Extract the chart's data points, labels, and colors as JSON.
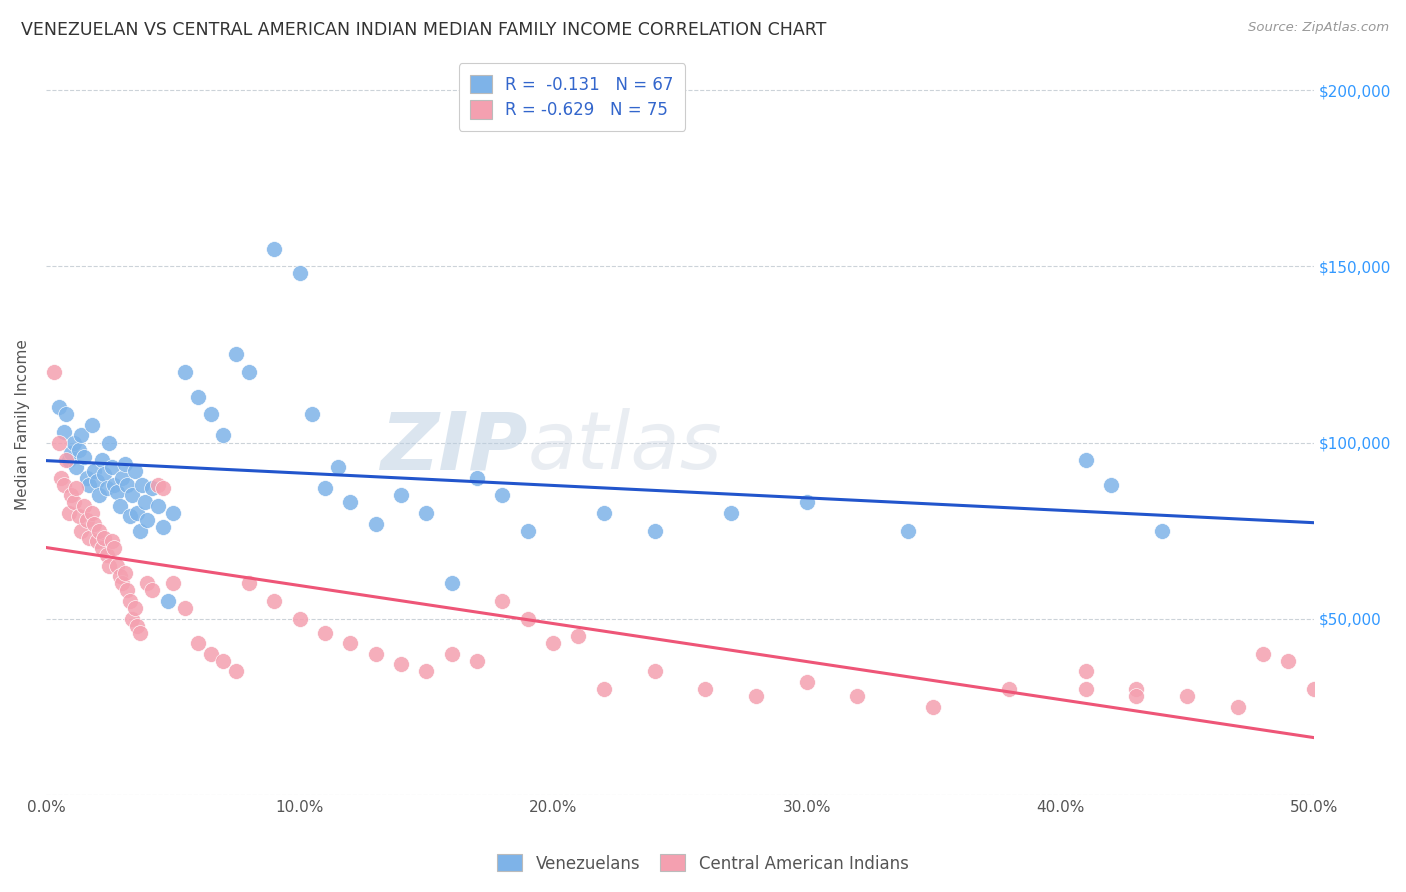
{
  "title": "VENEZUELAN VS CENTRAL AMERICAN INDIAN MEDIAN FAMILY INCOME CORRELATION CHART",
  "source": "Source: ZipAtlas.com",
  "ylabel": "Median Family Income",
  "xlabel_ticks": [
    "0.0%",
    "10.0%",
    "20.0%",
    "30.0%",
    "40.0%",
    "50.0%"
  ],
  "xlabel_tick_vals": [
    0.0,
    0.1,
    0.2,
    0.3,
    0.4,
    0.5
  ],
  "ylabel_ticks": [
    0,
    50000,
    100000,
    150000,
    200000
  ],
  "ylabel_tick_labels": [
    "",
    "$50,000",
    "$100,000",
    "$150,000",
    "$200,000"
  ],
  "xlim": [
    0.0,
    0.5
  ],
  "ylim": [
    0,
    210000
  ],
  "blue_R": "-0.131",
  "blue_N": "67",
  "pink_R": "-0.629",
  "pink_N": "75",
  "blue_color": "#7EB3E8",
  "pink_color": "#F4A0B0",
  "blue_line_color": "#2255CC",
  "pink_line_color": "#EE5577",
  "watermark_zip": "ZIP",
  "watermark_atlas": "atlas",
  "background_color": "#FFFFFF",
  "venezuelans_label": "Venezuelans",
  "central_american_label": "Central American Indians",
  "blue_scatter_x": [
    0.005,
    0.007,
    0.008,
    0.009,
    0.01,
    0.011,
    0.012,
    0.013,
    0.014,
    0.015,
    0.016,
    0.017,
    0.018,
    0.019,
    0.02,
    0.021,
    0.022,
    0.023,
    0.024,
    0.025,
    0.026,
    0.027,
    0.028,
    0.029,
    0.03,
    0.031,
    0.032,
    0.033,
    0.034,
    0.035,
    0.036,
    0.037,
    0.038,
    0.039,
    0.04,
    0.042,
    0.044,
    0.046,
    0.048,
    0.05,
    0.055,
    0.06,
    0.065,
    0.07,
    0.075,
    0.08,
    0.09,
    0.1,
    0.105,
    0.11,
    0.115,
    0.12,
    0.13,
    0.14,
    0.15,
    0.16,
    0.17,
    0.18,
    0.19,
    0.22,
    0.24,
    0.27,
    0.3,
    0.34,
    0.41,
    0.42,
    0.44
  ],
  "blue_scatter_y": [
    110000,
    103000,
    108000,
    95000,
    97000,
    100000,
    93000,
    98000,
    102000,
    96000,
    90000,
    88000,
    105000,
    92000,
    89000,
    85000,
    95000,
    91000,
    87000,
    100000,
    93000,
    88000,
    86000,
    82000,
    90000,
    94000,
    88000,
    79000,
    85000,
    92000,
    80000,
    75000,
    88000,
    83000,
    78000,
    87000,
    82000,
    76000,
    55000,
    80000,
    120000,
    113000,
    108000,
    102000,
    125000,
    120000,
    155000,
    148000,
    108000,
    87000,
    93000,
    83000,
    77000,
    85000,
    80000,
    60000,
    90000,
    85000,
    75000,
    80000,
    75000,
    80000,
    83000,
    75000,
    95000,
    88000,
    75000
  ],
  "pink_scatter_x": [
    0.003,
    0.005,
    0.006,
    0.007,
    0.008,
    0.009,
    0.01,
    0.011,
    0.012,
    0.013,
    0.014,
    0.015,
    0.016,
    0.017,
    0.018,
    0.019,
    0.02,
    0.021,
    0.022,
    0.023,
    0.024,
    0.025,
    0.026,
    0.027,
    0.028,
    0.029,
    0.03,
    0.031,
    0.032,
    0.033,
    0.034,
    0.035,
    0.036,
    0.037,
    0.04,
    0.042,
    0.044,
    0.046,
    0.05,
    0.055,
    0.06,
    0.065,
    0.07,
    0.075,
    0.08,
    0.09,
    0.1,
    0.11,
    0.12,
    0.13,
    0.14,
    0.15,
    0.16,
    0.17,
    0.18,
    0.19,
    0.2,
    0.21,
    0.22,
    0.24,
    0.26,
    0.28,
    0.3,
    0.32,
    0.35,
    0.38,
    0.41,
    0.43,
    0.45,
    0.47,
    0.48,
    0.49,
    0.5,
    0.41,
    0.43
  ],
  "pink_scatter_y": [
    120000,
    100000,
    90000,
    88000,
    95000,
    80000,
    85000,
    83000,
    87000,
    79000,
    75000,
    82000,
    78000,
    73000,
    80000,
    77000,
    72000,
    75000,
    70000,
    73000,
    68000,
    65000,
    72000,
    70000,
    65000,
    62000,
    60000,
    63000,
    58000,
    55000,
    50000,
    53000,
    48000,
    46000,
    60000,
    58000,
    88000,
    87000,
    60000,
    53000,
    43000,
    40000,
    38000,
    35000,
    60000,
    55000,
    50000,
    46000,
    43000,
    40000,
    37000,
    35000,
    40000,
    38000,
    55000,
    50000,
    43000,
    45000,
    30000,
    35000,
    30000,
    28000,
    32000,
    28000,
    25000,
    30000,
    35000,
    30000,
    28000,
    25000,
    40000,
    38000,
    30000,
    30000,
    28000
  ]
}
